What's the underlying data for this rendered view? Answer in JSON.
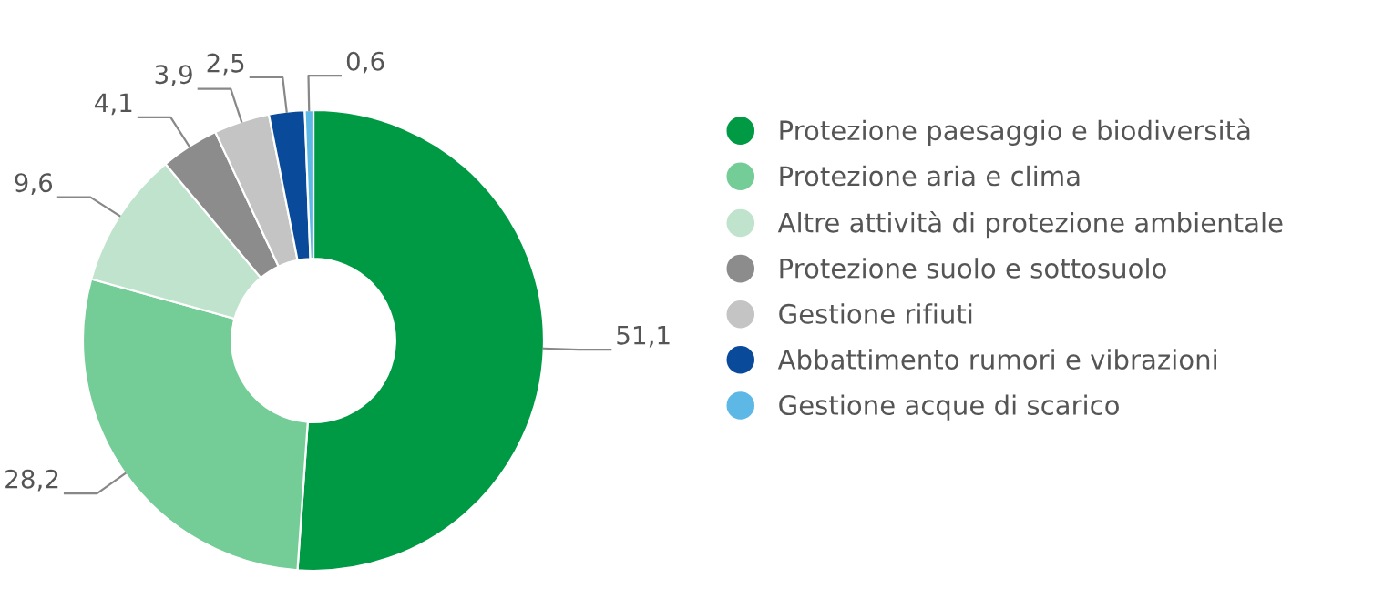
{
  "chart_data": {
    "type": "donut",
    "categories": [
      "Protezione paesaggio e biodiversità",
      "Protezione aria e clima",
      "Altre attività di protezione ambientale",
      "Protezione suolo e sottosuolo",
      "Gestione rifiuti",
      "Abbattimento rumori e vibrazioni",
      "Gestione acque di scarico"
    ],
    "values": [
      51.1,
      28.2,
      9.6,
      4.1,
      3.9,
      2.5,
      0.6
    ],
    "value_labels": [
      "51,1",
      "28,2",
      "9,6",
      "4,1",
      "3,9",
      "2,5",
      "0,6"
    ],
    "colors": [
      "#009a44",
      "#74cc96",
      "#bfe3cd",
      "#8c8c8c",
      "#c4c4c4",
      "#0a4a9a",
      "#5eb8e6"
    ],
    "legend": "right"
  }
}
